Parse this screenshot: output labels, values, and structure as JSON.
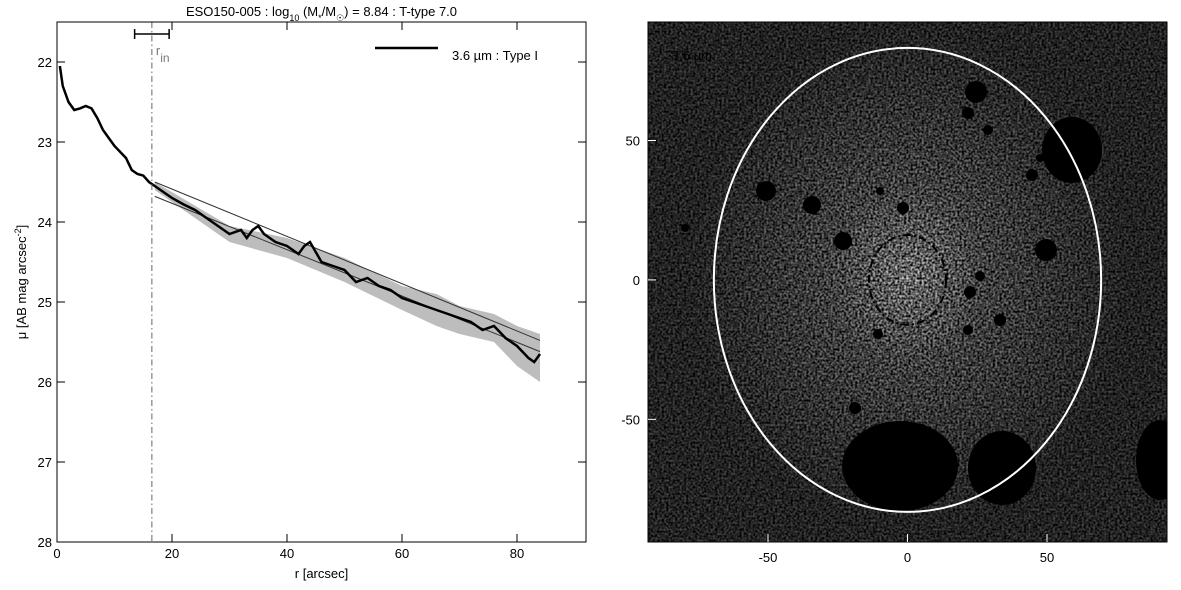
{
  "chart_data": [
    {
      "type": "line",
      "title_parts": [
        "ESO150-005 : log",
        "10",
        " (M",
        "*",
        "/M",
        "☉",
        ") = 8.84 : T-type 7.0"
      ],
      "xlabel": "r [arcsec]",
      "ylabel_parts": [
        "μ [AB mag arcsec",
        "-2",
        "]"
      ],
      "xlim": [
        0,
        92
      ],
      "xticks": [
        0,
        20,
        40,
        60,
        80
      ],
      "ylim": [
        28,
        21.5
      ],
      "yticks": [
        22,
        23,
        24,
        25,
        26,
        27,
        28
      ],
      "series": [
        {
          "name": "3.6 µm : Type I",
          "color": "#000000",
          "x": [
            0.5,
            1,
            2,
            3,
            4,
            5,
            6,
            7,
            8,
            9,
            10,
            12,
            13,
            14,
            15,
            16,
            17,
            18,
            20,
            22,
            24,
            26,
            28,
            30,
            32,
            33,
            34,
            35,
            36,
            38,
            40,
            42,
            43,
            44,
            46,
            48,
            50,
            52,
            54,
            56,
            58,
            60,
            62,
            64,
            66,
            68,
            70,
            72,
            74,
            76,
            78,
            80,
            82,
            83,
            84
          ],
          "values": [
            22.05,
            22.3,
            22.5,
            22.6,
            22.58,
            22.55,
            22.58,
            22.7,
            22.85,
            22.95,
            23.05,
            23.2,
            23.35,
            23.4,
            23.42,
            23.5,
            23.55,
            23.6,
            23.7,
            23.78,
            23.85,
            23.95,
            24.05,
            24.15,
            24.1,
            24.2,
            24.1,
            24.05,
            24.15,
            24.25,
            24.3,
            24.4,
            24.3,
            24.25,
            24.5,
            24.55,
            24.6,
            24.75,
            24.7,
            24.8,
            24.85,
            24.95,
            25.0,
            25.05,
            25.1,
            25.15,
            25.2,
            25.25,
            25.35,
            25.3,
            25.45,
            25.55,
            25.7,
            25.75,
            25.65
          ]
        }
      ],
      "band": {
        "color": "#bdbdbd",
        "x": [
          17,
          30,
          40,
          50,
          60,
          66,
          70,
          76,
          80,
          84
        ],
        "lower": [
          23.5,
          24.05,
          24.2,
          24.45,
          24.8,
          24.9,
          25.05,
          25.15,
          25.3,
          25.4
        ],
        "upper": [
          23.6,
          24.25,
          24.45,
          24.75,
          25.1,
          25.3,
          25.4,
          25.5,
          25.8,
          26.0
        ]
      },
      "fit_lines": [
        {
          "x": [
            17,
            84
          ],
          "values": [
            23.5,
            25.48
          ]
        },
        {
          "x": [
            17,
            84
          ],
          "values": [
            23.68,
            25.62
          ]
        }
      ],
      "rin": 16.5,
      "rin_range": [
        13.5,
        19.5
      ],
      "rin_bar_y": 21.65,
      "rin_label": "r",
      "rin_sub": "in"
    },
    {
      "type": "image",
      "label": "3.6 µm",
      "xlim": [
        -93,
        93
      ],
      "xticks": [
        -50,
        0,
        50
      ],
      "ylim": [
        -94,
        92.5
      ],
      "yticks": [
        -50,
        0,
        50
      ],
      "ellipses": [
        {
          "cx": 0,
          "cy": 0,
          "a": 69.4,
          "b": 83.2,
          "color": "#ffffff",
          "dashed": false
        },
        {
          "cx": 0,
          "cy": 0,
          "a": 13.8,
          "b": 16.1,
          "color": "#000000",
          "dashed": true
        }
      ]
    }
  ]
}
